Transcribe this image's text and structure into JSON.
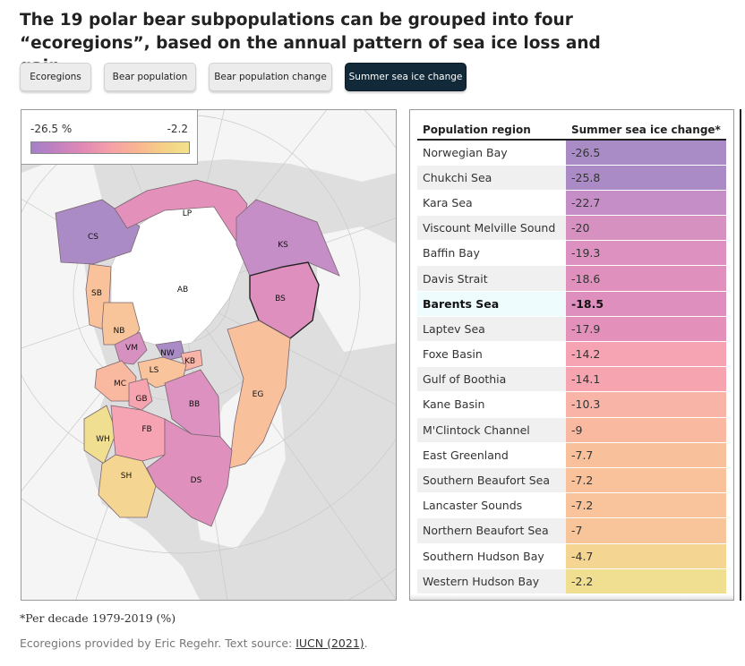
{
  "title": "The 19 polar bear subpopulations can be grouped into four “ecoregions”, based on the annual pattern of sea ice loss and gain",
  "tabs": [
    {
      "label": "Ecoregions",
      "active": false
    },
    {
      "label": "Bear population",
      "active": false
    },
    {
      "label": "Bear population change",
      "active": false
    },
    {
      "label": "Summer sea ice change",
      "active": true
    }
  ],
  "legend": {
    "min_label": "-26.5 %",
    "max_label": "-2.2",
    "colors": [
      "#a37fc9",
      "#f3e28c"
    ]
  },
  "map": {
    "labels": [
      "CS",
      "LP",
      "KS",
      "SB",
      "AB",
      "BS",
      "NB",
      "VM",
      "NW",
      "KB",
      "MC",
      "LS",
      "GB",
      "EG",
      "BB",
      "WH",
      "FB",
      "SH",
      "DS"
    ]
  },
  "table": {
    "headers": [
      "Population region",
      "Summer sea ice change*"
    ],
    "rows": [
      {
        "region": "Norwegian Bay",
        "value": "-26.5",
        "color": "#a98cc6"
      },
      {
        "region": "Chukchi Sea",
        "value": "-25.8",
        "color": "#ab8bc6"
      },
      {
        "region": "Kara Sea",
        "value": "-22.7",
        "color": "#c58ec6"
      },
      {
        "region": "Viscount Melville Sound",
        "value": "-20",
        "color": "#d791c1"
      },
      {
        "region": "Baffin Bay",
        "value": "-19.3",
        "color": "#dc91c0"
      },
      {
        "region": "Davis Strait",
        "value": "-18.6",
        "color": "#df90bd"
      },
      {
        "region": "Barents Sea",
        "value": "-18.5",
        "color": "#df8fbd",
        "highlight": true
      },
      {
        "region": "Laptev Sea",
        "value": "-17.9",
        "color": "#e390bb"
      },
      {
        "region": "Foxe Basin",
        "value": "-14.2",
        "color": "#f6a3b3"
      },
      {
        "region": "Gulf of Boothia",
        "value": "-14.1",
        "color": "#f5a4b0"
      },
      {
        "region": "Kane Basin",
        "value": "-10.3",
        "color": "#f9b4a8"
      },
      {
        "region": "M'Clintock Channel",
        "value": "-9",
        "color": "#f9b9a1"
      },
      {
        "region": "East Greenland",
        "value": "-7.7",
        "color": "#f8c09b"
      },
      {
        "region": "Southern Beaufort Sea",
        "value": "-7.2",
        "color": "#f9c29a"
      },
      {
        "region": "Lancaster Sounds",
        "value": "-7.2",
        "color": "#f9c39b"
      },
      {
        "region": "Northern Beaufort Sea",
        "value": "-7",
        "color": "#f8c49a"
      },
      {
        "region": "Southern Hudson Bay",
        "value": "-4.7",
        "color": "#f5d592"
      },
      {
        "region": "Western Hudson Bay",
        "value": "-2.2",
        "color": "#f0df90"
      }
    ]
  },
  "footnote": "*Per decade 1979-2019 (%)",
  "source": {
    "prefix": "Ecoregions provided by Eric Regehr. Text source: ",
    "link": "IUCN (2021)",
    "suffix": "."
  }
}
